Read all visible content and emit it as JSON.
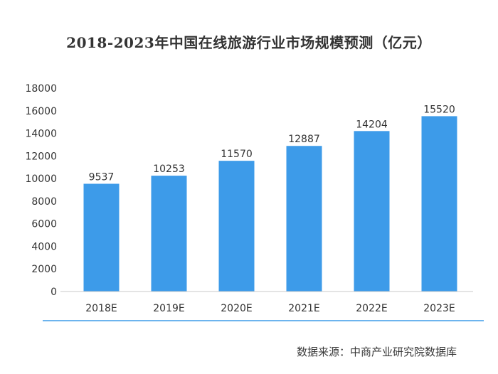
{
  "chart_data": {
    "type": "bar",
    "title": "2018-2023年中国在线旅游行业市场规模预测（亿元）",
    "categories": [
      "2018E",
      "2019E",
      "2020E",
      "2021E",
      "2022E",
      "2023E"
    ],
    "values": [
      9537,
      10253,
      11570,
      12887,
      14204,
      15520
    ],
    "data_labels": [
      "9537",
      "10253",
      "11570",
      "12887",
      "14204",
      "15520"
    ],
    "y_ticks": [
      "0",
      "2000",
      "4000",
      "6000",
      "8000",
      "10000",
      "12000",
      "14000",
      "16000",
      "18000"
    ],
    "ylim": [
      0,
      18000
    ],
    "xlabel": "",
    "ylabel": "",
    "grid": false,
    "bar_color": "#3d9be9",
    "source": "数据来源：中商产业研究院数据库"
  }
}
